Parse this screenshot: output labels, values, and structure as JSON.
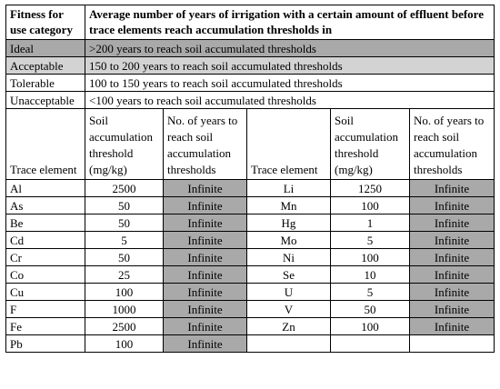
{
  "header": {
    "col1": "Fitness for use category",
    "col2": "Average number of years of irrigation with a certain amount of effluent before trace elements reach accumulation thresholds in"
  },
  "categories": [
    {
      "name": "Ideal",
      "desc": ">200 years to reach soil accumulated thresholds"
    },
    {
      "name": "Acceptable",
      "desc": "150 to 200 years to reach soil accumulated thresholds"
    },
    {
      "name": "Tolerable",
      "desc": "100 to 150 years to reach soil accumulated thresholds"
    },
    {
      "name": "Unacceptable",
      "desc": "<100 years to reach soil accumulated thresholds"
    }
  ],
  "columns": {
    "trace_element": "Trace element",
    "threshold": "Soil accumulation threshold (mg/kg)",
    "years": "No. of years to reach soil accumulation thresholds"
  },
  "left_rows": [
    {
      "element": "Al",
      "threshold": "2500",
      "years": "Infinite"
    },
    {
      "element": "As",
      "threshold": "50",
      "years": "Infinite"
    },
    {
      "element": "Be",
      "threshold": "50",
      "years": "Infinite"
    },
    {
      "element": "Cd",
      "threshold": "5",
      "years": "Infinite"
    },
    {
      "element": "Cr",
      "threshold": "50",
      "years": "Infinite"
    },
    {
      "element": "Co",
      "threshold": "25",
      "years": "Infinite"
    },
    {
      "element": "Cu",
      "threshold": "100",
      "years": "Infinite"
    },
    {
      "element": "F",
      "threshold": "1000",
      "years": "Infinite"
    },
    {
      "element": "Fe",
      "threshold": "2500",
      "years": "Infinite"
    },
    {
      "element": "Pb",
      "threshold": "100",
      "years": "Infinite"
    }
  ],
  "right_rows": [
    {
      "element": "Li",
      "threshold": "1250",
      "years": "Infinite"
    },
    {
      "element": "Mn",
      "threshold": "100",
      "years": "Infinite"
    },
    {
      "element": "Hg",
      "threshold": "1",
      "years": "Infinite"
    },
    {
      "element": "Mo",
      "threshold": "5",
      "years": "Infinite"
    },
    {
      "element": "Ni",
      "threshold": "100",
      "years": "Infinite"
    },
    {
      "element": "Se",
      "threshold": "10",
      "years": "Infinite"
    },
    {
      "element": "U",
      "threshold": "5",
      "years": "Infinite"
    },
    {
      "element": "V",
      "threshold": "50",
      "years": "Infinite"
    },
    {
      "element": "Zn",
      "threshold": "100",
      "years": "Infinite"
    }
  ],
  "colors": {
    "ideal": "#a9a9a9",
    "acceptable": "#d3d3d3",
    "infinite_cell": "#a9a9a9"
  }
}
